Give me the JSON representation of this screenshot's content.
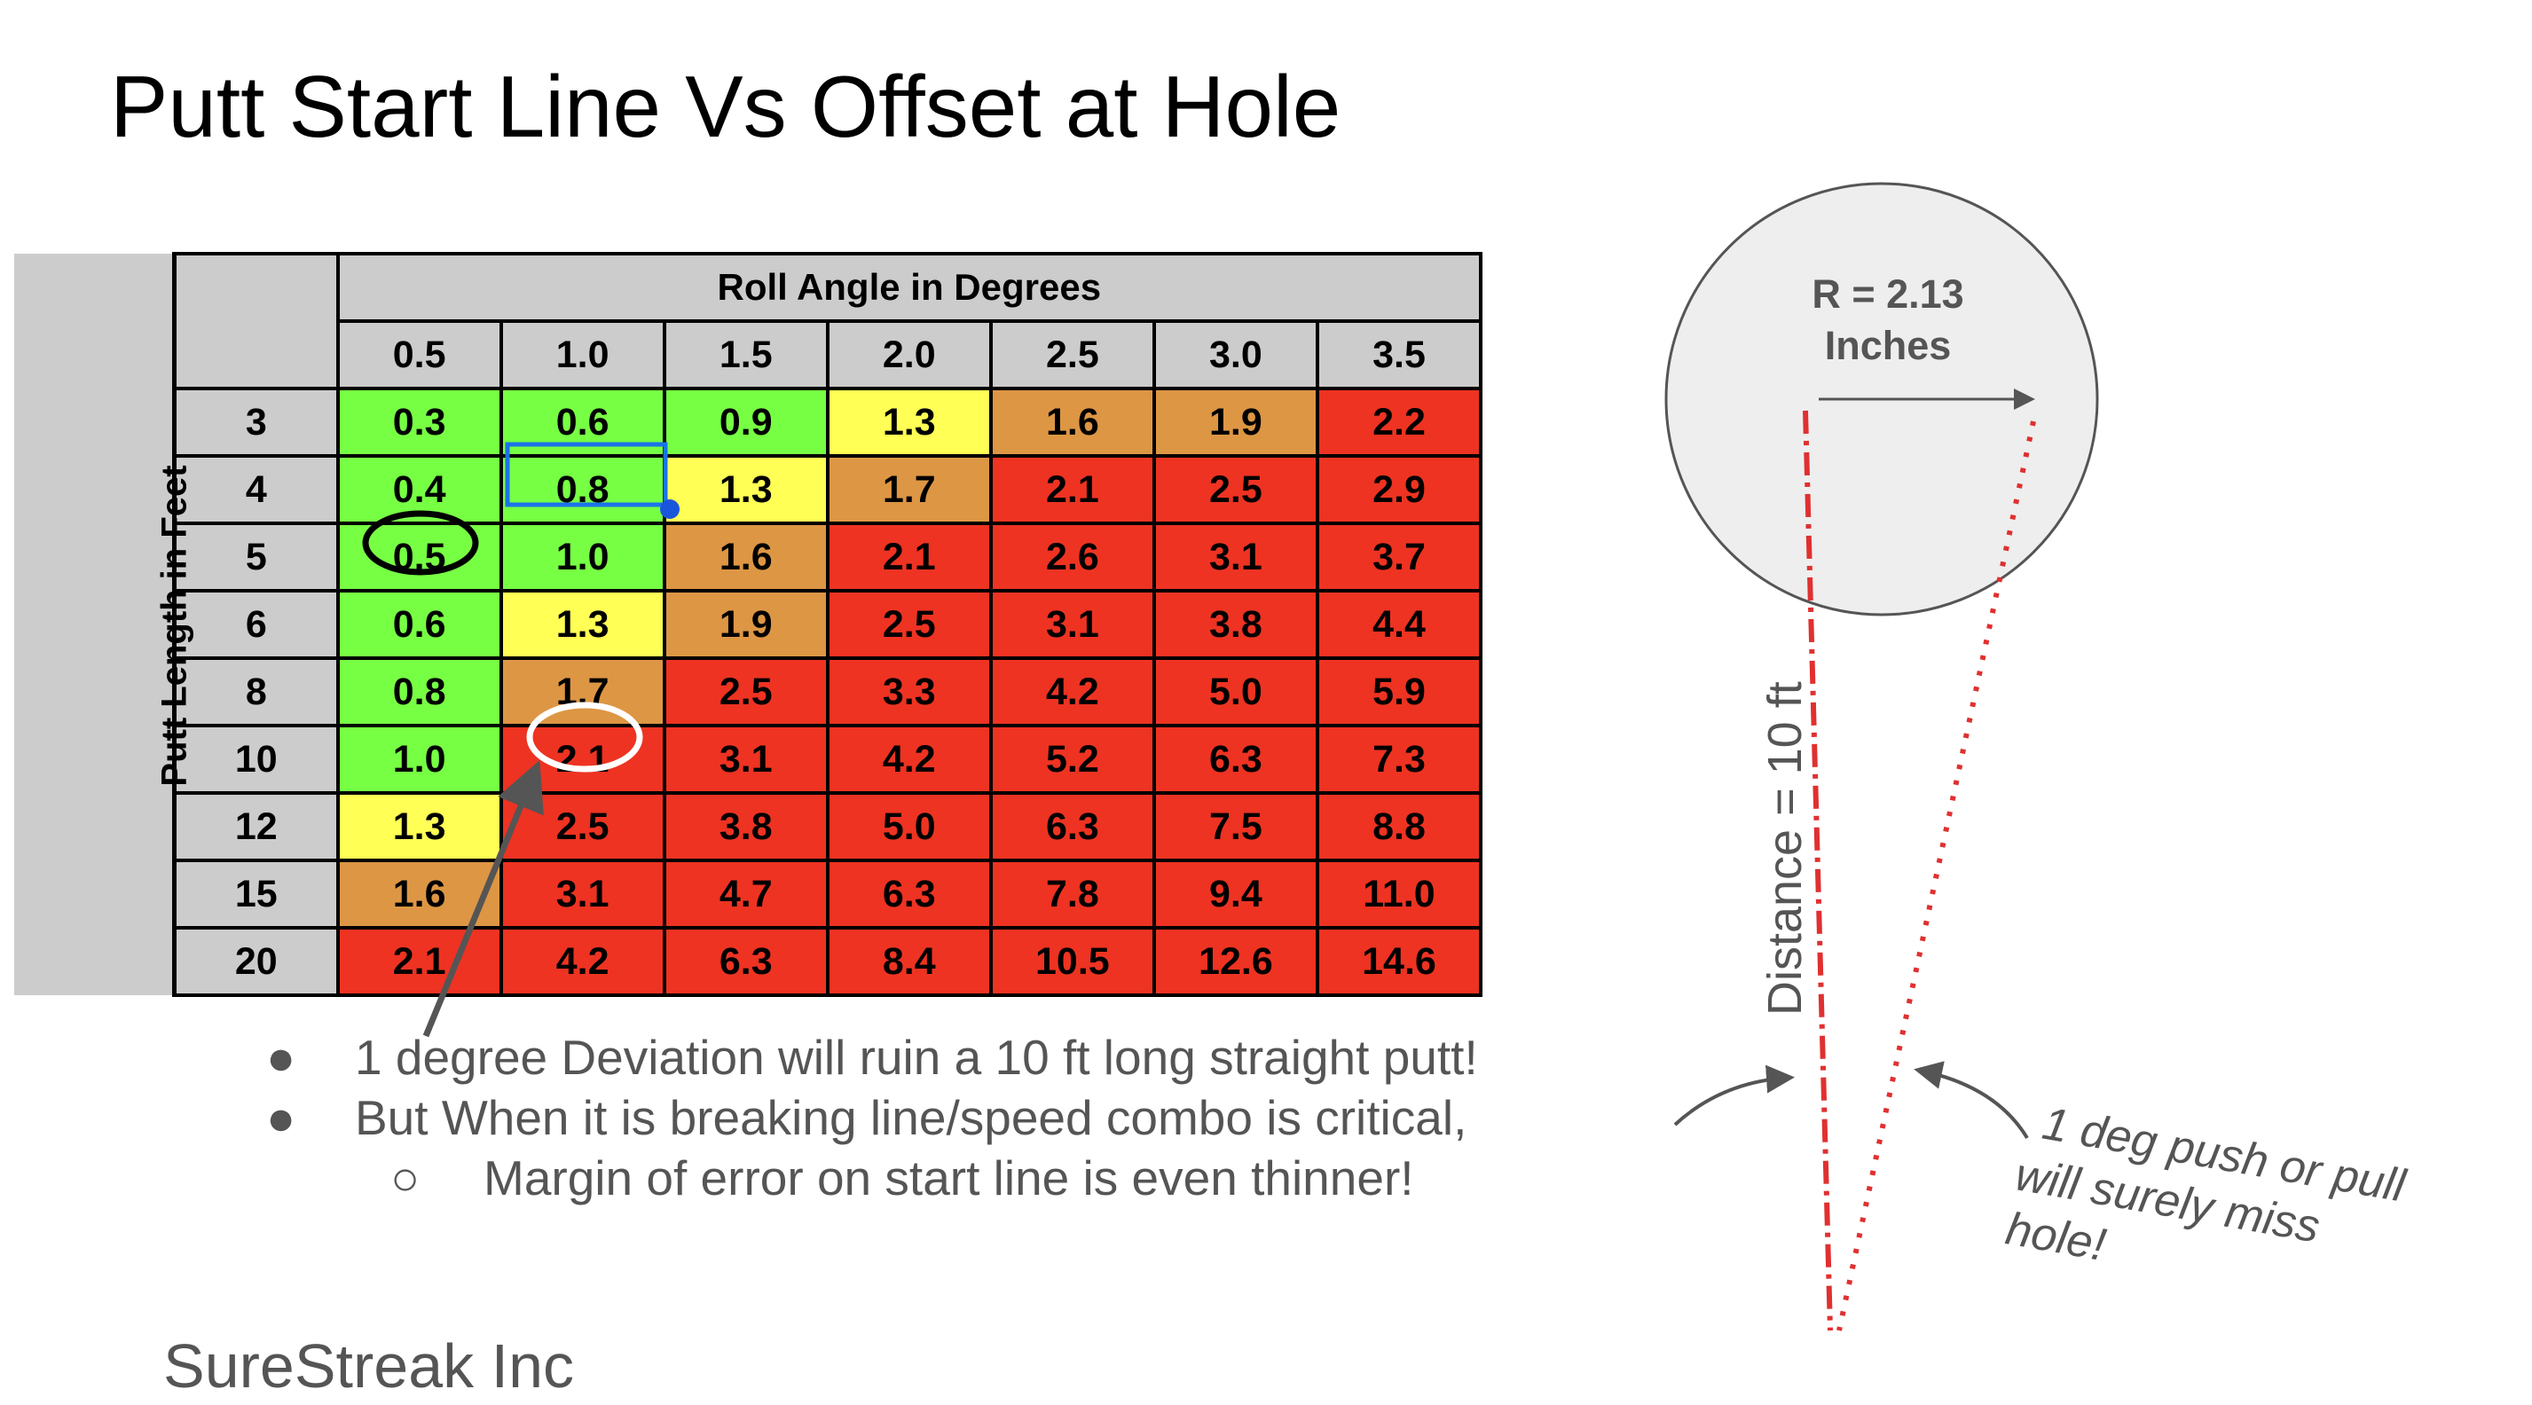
{
  "title": "Putt Start Line Vs Offset at Hole",
  "table": {
    "side_label": "Putt Length in Feet",
    "header_label": "Roll Angle in Degrees",
    "angles": [
      "0.5",
      "1.0",
      "1.5",
      "2.0",
      "2.5",
      "3.0",
      "3.5"
    ],
    "rows": [
      {
        "length": "3",
        "values": [
          "0.3",
          "0.6",
          "0.9",
          "1.3",
          "1.6",
          "1.9",
          "2.2"
        ]
      },
      {
        "length": "4",
        "values": [
          "0.4",
          "0.8",
          "1.3",
          "1.7",
          "2.1",
          "2.5",
          "2.9"
        ]
      },
      {
        "length": "5",
        "values": [
          "0.5",
          "1.0",
          "1.6",
          "2.1",
          "2.6",
          "3.1",
          "3.7"
        ]
      },
      {
        "length": "6",
        "values": [
          "0.6",
          "1.3",
          "1.9",
          "2.5",
          "3.1",
          "3.8",
          "4.4"
        ]
      },
      {
        "length": "8",
        "values": [
          "0.8",
          "1.7",
          "2.5",
          "3.3",
          "4.2",
          "5.0",
          "5.9"
        ]
      },
      {
        "length": "10",
        "values": [
          "1.0",
          "2.1",
          "3.1",
          "4.2",
          "5.2",
          "6.3",
          "7.3"
        ]
      },
      {
        "length": "12",
        "values": [
          "1.3",
          "2.5",
          "3.8",
          "5.0",
          "6.3",
          "7.5",
          "8.8"
        ]
      },
      {
        "length": "15",
        "values": [
          "1.6",
          "3.1",
          "4.7",
          "6.3",
          "7.8",
          "9.4",
          "11.0"
        ]
      },
      {
        "length": "20",
        "values": [
          "2.1",
          "4.2",
          "6.3",
          "8.4",
          "10.5",
          "12.6",
          "14.6"
        ]
      }
    ],
    "colors": {
      "green": "#77ff44",
      "yellow": "#ffff55",
      "orange": "#dd9644",
      "red": "#ee3322",
      "header_gray": "#cccccc"
    }
  },
  "bullets": [
    {
      "marker": "●",
      "text": "1 degree Deviation will ruin a 10 ft  long straight putt!"
    },
    {
      "marker": "●",
      "text": "But When it is breaking line/speed combo is critical,"
    },
    {
      "marker": "○",
      "text": "Margin of error on start line is even thinner!"
    }
  ],
  "diagram": {
    "radius_line1": "R = 2.13",
    "radius_line2": "Inches",
    "distance_label": "Distance = 10 ft",
    "note_lines": [
      "1 deg push or pull",
      "will surely miss",
      "hole!"
    ],
    "line_color": "#e03030",
    "hole_fill": "#eeeeee"
  },
  "footer": "SureStreak Inc"
}
